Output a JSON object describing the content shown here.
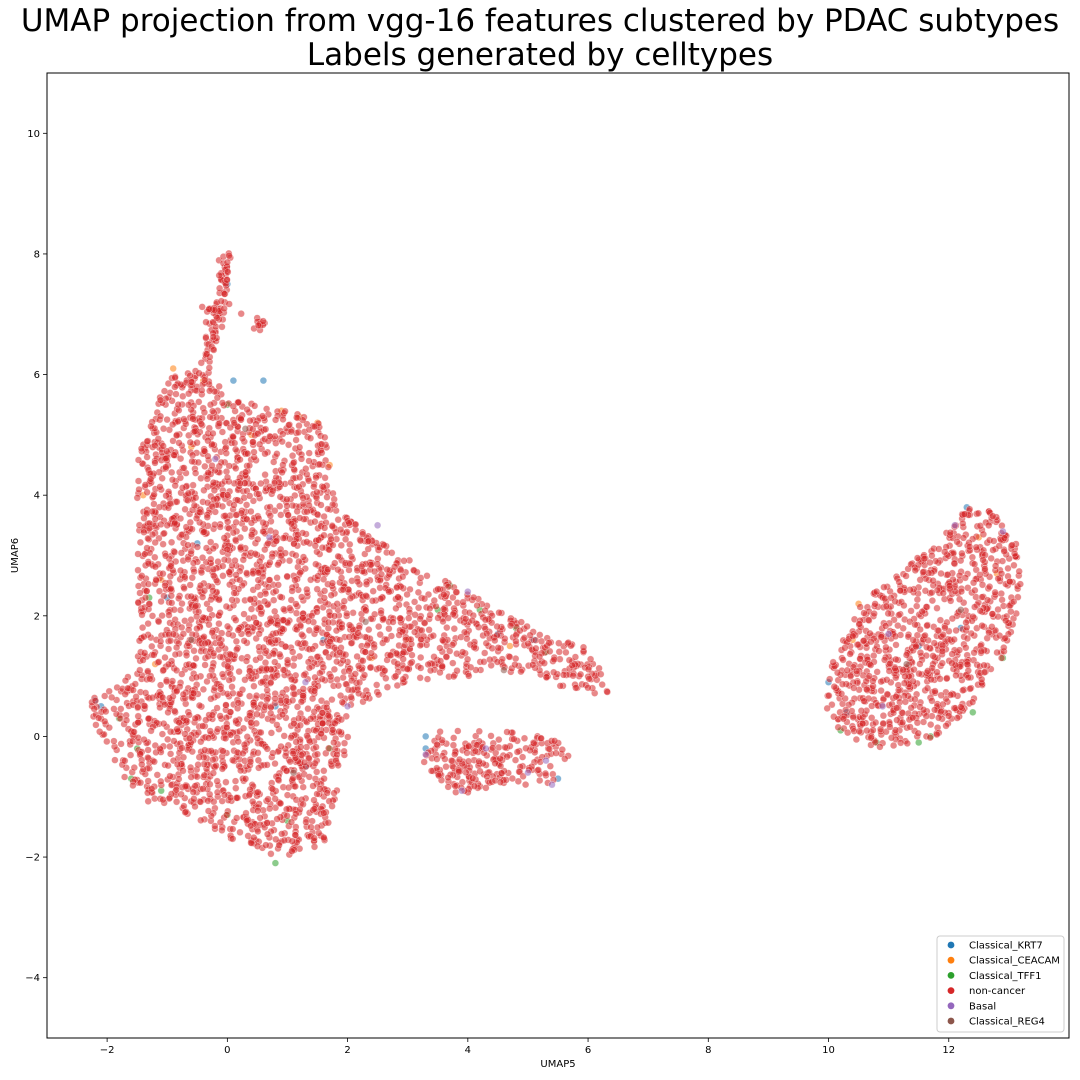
{
  "chart_data": {
    "type": "scatter",
    "title": "UMAP projection from vgg-16 features clustered by PDAC subtypes",
    "subtitle": "Labels generated by celltypes",
    "xlabel": "UMAP5",
    "ylabel": "UMAP6",
    "xlim": [
      -3,
      14
    ],
    "ylim": [
      -5,
      11
    ],
    "xticks": [
      -2,
      0,
      2,
      4,
      6,
      8,
      10,
      12
    ],
    "yticks": [
      -4,
      -2,
      0,
      2,
      4,
      6,
      8,
      10
    ],
    "xtick_labels": [
      "−2",
      "0",
      "2",
      "4",
      "6",
      "8",
      "10",
      "12"
    ],
    "ytick_labels": [
      "−4",
      "−2",
      "0",
      "2",
      "4",
      "6",
      "8",
      "10"
    ],
    "grid": false,
    "legend_position": "lower-right",
    "marker_alpha": 0.55,
    "series": [
      {
        "name": "Classical_KRT7",
        "color": "#1f77b4",
        "points": [
          [
            -2.2,
            0.6
          ],
          [
            -2.1,
            0.5
          ],
          [
            0.0,
            7.5
          ],
          [
            0.1,
            5.9
          ],
          [
            0.6,
            5.9
          ],
          [
            1.6,
            1.6
          ],
          [
            3.3,
            0.0
          ],
          [
            3.3,
            -0.2
          ],
          [
            4.5,
            1.7
          ],
          [
            5.1,
            1.6
          ],
          [
            12.3,
            3.8
          ],
          [
            12.2,
            1.8
          ],
          [
            10.3,
            0.4
          ],
          [
            10.0,
            0.9
          ],
          [
            11.5,
            1.5
          ],
          [
            -0.5,
            3.2
          ],
          [
            0.8,
            0.5
          ],
          [
            1.3,
            -0.5
          ],
          [
            5.5,
            -0.7
          ],
          [
            -1.0,
            2.3
          ]
        ]
      },
      {
        "name": "Classical_CEACAM",
        "color": "#ff7f0e",
        "points": [
          [
            -0.9,
            6.1
          ],
          [
            -0.4,
            5.9
          ],
          [
            0.9,
            5.4
          ],
          [
            1.2,
            5.3
          ],
          [
            1.5,
            5.2
          ],
          [
            -1.4,
            4.0
          ],
          [
            -1.1,
            2.6
          ],
          [
            2.4,
            1.3
          ],
          [
            3.0,
            1.6
          ],
          [
            4.7,
            1.5
          ],
          [
            10.5,
            2.2
          ],
          [
            10.4,
            1.6
          ],
          [
            12.5,
            3.3
          ],
          [
            12.8,
            2.7
          ],
          [
            -1.2,
            1.2
          ],
          [
            0.4,
            5.0
          ],
          [
            -0.6,
            4.8
          ],
          [
            1.7,
            4.5
          ]
        ]
      },
      {
        "name": "Classical_TFF1",
        "color": "#2ca02c",
        "points": [
          [
            -1.8,
            0.3
          ],
          [
            -1.6,
            -0.7
          ],
          [
            -1.1,
            -0.9
          ],
          [
            -1.5,
            -0.2
          ],
          [
            0.0,
            -1.3
          ],
          [
            0.8,
            -2.1
          ],
          [
            1.7,
            -0.2
          ],
          [
            3.7,
            2.5
          ],
          [
            3.5,
            2.1
          ],
          [
            4.2,
            2.1
          ],
          [
            4.8,
            1.8
          ],
          [
            5.3,
            1.4
          ],
          [
            10.2,
            0.1
          ],
          [
            10.8,
            -0.1
          ],
          [
            11.5,
            -0.1
          ],
          [
            11.7,
            0.0
          ],
          [
            12.4,
            0.4
          ],
          [
            12.9,
            1.3
          ],
          [
            0.0,
            5.5
          ],
          [
            -1.3,
            2.3
          ],
          [
            1.0,
            -1.4
          ]
        ]
      },
      {
        "name": "non-cancer",
        "color": "#d62728",
        "points": "generated"
      },
      {
        "name": "Basal",
        "color": "#9467bd",
        "points": [
          [
            2.5,
            3.5
          ],
          [
            3.3,
            -0.3
          ],
          [
            4.0,
            2.4
          ],
          [
            4.3,
            -0.2
          ],
          [
            5.0,
            -0.6
          ],
          [
            5.4,
            -0.8
          ],
          [
            5.3,
            -0.4
          ],
          [
            3.9,
            -0.9
          ],
          [
            12.1,
            3.5
          ],
          [
            12.9,
            3.4
          ],
          [
            11.0,
            1.7
          ],
          [
            10.9,
            0.5
          ],
          [
            0.7,
            3.3
          ],
          [
            -0.2,
            4.6
          ],
          [
            1.3,
            0.9
          ],
          [
            2.0,
            0.5
          ]
        ]
      },
      {
        "name": "Classical_REG4",
        "color": "#8c564b",
        "points": [
          [
            0.3,
            5.1
          ],
          [
            -0.6,
            1.6
          ],
          [
            1.1,
            -0.6
          ],
          [
            2.3,
            1.9
          ],
          [
            4.6,
            1.1
          ],
          [
            11.3,
            1.2
          ],
          [
            12.2,
            2.1
          ]
        ]
      }
    ]
  }
}
